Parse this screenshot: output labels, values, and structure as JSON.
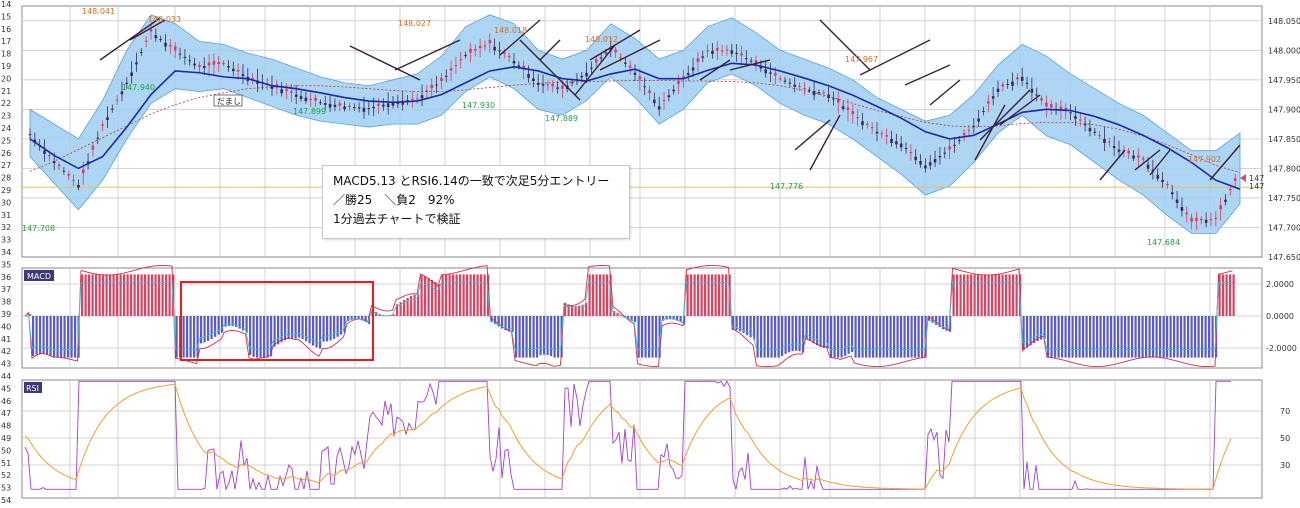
{
  "colors": {
    "grid": "#c8c8c8",
    "panel_border": "#888888",
    "band_fill": "#9fcff3",
    "band_edge": "#5aa0d8",
    "candle_up": "#e23a5a",
    "candle_down": "#3a2a5a",
    "ma_line": "#1a2aa8",
    "trend_line": "#3b1e3b",
    "dashed_ma": "#c03030",
    "hline": "#e8c060",
    "peak_label": "#d07020",
    "trough_label": "#20a040",
    "macd_line": "#d03040",
    "signal_line": "#40c0d0",
    "hist_pos": "#e04060",
    "hist_neg": "#5a5ad0",
    "rsi_line": "#a040d0",
    "rsi_ma": "#f0a030",
    "highlight_box": "#e02020",
    "panel_tag_bg": "#3a3a7a"
  },
  "row_numbers": [
    "14",
    "15",
    "16",
    "17",
    "18",
    "19",
    "20",
    "21",
    "22",
    "23",
    "24",
    "25",
    "26",
    "27",
    "28",
    "29",
    "30",
    "31",
    "32",
    "33",
    "34",
    "35",
    "36",
    "37",
    "38",
    "39",
    "40",
    "41",
    "42",
    "43",
    "44",
    "45",
    "46",
    "47",
    "48",
    "49",
    "50",
    "51",
    "52",
    "53",
    "54"
  ],
  "price_panel": {
    "y_ticks": [
      "148.050",
      "148.000",
      "147.950",
      "147.900",
      "147.850",
      "147.800",
      "147.750",
      "147.700",
      "147.650"
    ],
    "last_price_red": "147",
    "last_price_cyan": "147",
    "peak_labels": [
      "148.041",
      "148.033",
      "148.027",
      "148.018",
      "148.012",
      "147.967",
      "147.902"
    ],
    "trough_labels": [
      "147.708",
      "147.940",
      "147.899",
      "147.930",
      "147.889",
      "147.776",
      "147.684"
    ],
    "damashi_label": "だまし"
  },
  "macd_panel": {
    "tag": "MACD",
    "y_ticks": [
      "2.0000",
      "0.0000",
      "-2.0000"
    ]
  },
  "rsi_panel": {
    "tag": "RSI",
    "y_ticks": [
      "70",
      "50",
      "30"
    ]
  },
  "annotation": {
    "line1": "MACD5.13 とRSI6.14の一致で次足5分エントリー",
    "line2": "／勝25　＼負2　92%",
    "line3": "1分過去チャートで検証"
  },
  "chart_data": {
    "type": "line",
    "title": "",
    "xlabel": "",
    "ylabel": "",
    "ylim": [
      147.65,
      148.075
    ],
    "x": [
      0,
      1,
      2,
      3,
      4,
      5,
      6,
      7,
      8,
      9,
      10,
      11,
      12,
      13,
      14,
      15,
      16,
      17,
      18,
      19,
      20,
      21,
      22,
      23,
      24,
      25,
      26,
      27,
      28,
      29,
      30,
      31,
      32,
      33,
      34,
      35,
      36,
      37,
      38,
      39,
      40,
      41,
      42,
      43,
      44,
      45,
      46,
      47,
      48,
      49,
      50
    ],
    "series": [
      {
        "values": [
          147.858,
          147.812,
          147.772,
          147.872,
          147.945,
          148.032,
          148.0,
          147.972,
          147.978,
          147.955,
          147.94,
          147.925,
          147.912,
          147.905,
          147.902,
          147.912,
          147.918,
          147.948,
          147.992,
          148.012,
          147.982,
          147.945,
          147.935,
          147.962,
          148.005,
          147.962,
          147.905,
          147.952,
          147.999,
          148.0,
          147.978,
          147.952,
          147.935,
          147.925,
          147.892,
          147.862,
          147.842,
          147.805,
          147.832,
          147.872,
          147.935,
          147.955,
          147.905,
          147.895,
          147.862,
          147.832,
          147.815,
          147.772,
          147.71,
          147.715,
          147.795
        ]
      },
      {
        "values": [
          147.85,
          147.822,
          147.8,
          147.82,
          147.87,
          147.925,
          147.965,
          147.962,
          147.955,
          147.952,
          147.94,
          147.935,
          147.928,
          147.92,
          147.914,
          147.912,
          147.914,
          147.925,
          147.945,
          147.965,
          147.972,
          147.965,
          147.952,
          147.948,
          147.96,
          147.968,
          147.952,
          147.952,
          147.966,
          147.978,
          147.975,
          147.965,
          147.953,
          147.94,
          147.924,
          147.905,
          147.885,
          147.862,
          147.85,
          147.856,
          147.875,
          147.895,
          147.9,
          147.898,
          147.888,
          147.874,
          147.856,
          147.835,
          147.81,
          147.78,
          147.765
        ]
      },
      {
        "values": [
          147.795,
          147.812,
          147.832,
          147.852,
          147.872,
          147.892,
          147.908,
          147.92,
          147.928,
          147.935,
          147.938,
          147.94,
          147.94,
          147.938,
          147.935,
          147.932,
          147.93,
          147.93,
          147.933,
          147.937,
          147.941,
          147.944,
          147.946,
          147.947,
          147.948,
          147.949,
          147.949,
          147.948,
          147.948,
          147.947,
          147.945,
          147.94,
          147.932,
          147.922,
          147.91,
          147.898,
          147.888,
          147.878,
          147.872,
          147.87,
          147.872,
          147.876,
          147.878,
          147.878,
          147.874,
          147.866,
          147.855,
          147.84,
          147.823,
          147.805,
          147.793
        ]
      },
      {
        "values": [
          147.9,
          147.875,
          147.85,
          147.915,
          148.0,
          148.06,
          148.045,
          148.015,
          148.01,
          147.995,
          147.985,
          147.97,
          147.955,
          147.945,
          147.94,
          147.95,
          147.96,
          147.99,
          148.04,
          148.06,
          148.045,
          148.0,
          147.985,
          148.0,
          148.045,
          148.02,
          147.985,
          148.0,
          148.04,
          148.055,
          148.03,
          148.0,
          147.985,
          147.97,
          147.95,
          147.92,
          147.9,
          147.88,
          147.89,
          147.925,
          147.975,
          148.01,
          147.99,
          147.96,
          147.935,
          147.91,
          147.89,
          147.86,
          147.83,
          147.83,
          147.86
        ]
      },
      {
        "values": [
          147.82,
          147.775,
          147.73,
          147.78,
          147.85,
          147.91,
          147.935,
          147.93,
          147.935,
          147.92,
          147.905,
          147.89,
          147.88,
          147.875,
          147.87,
          147.875,
          147.875,
          147.89,
          147.93,
          147.955,
          147.935,
          147.9,
          147.89,
          147.915,
          147.955,
          147.92,
          147.875,
          147.9,
          147.945,
          147.96,
          147.94,
          147.91,
          147.89,
          147.875,
          147.85,
          147.82,
          147.79,
          147.755,
          147.77,
          147.81,
          147.86,
          147.89,
          147.855,
          147.84,
          147.81,
          147.78,
          147.755,
          147.72,
          147.69,
          147.69,
          147.74
        ]
      }
    ]
  }
}
